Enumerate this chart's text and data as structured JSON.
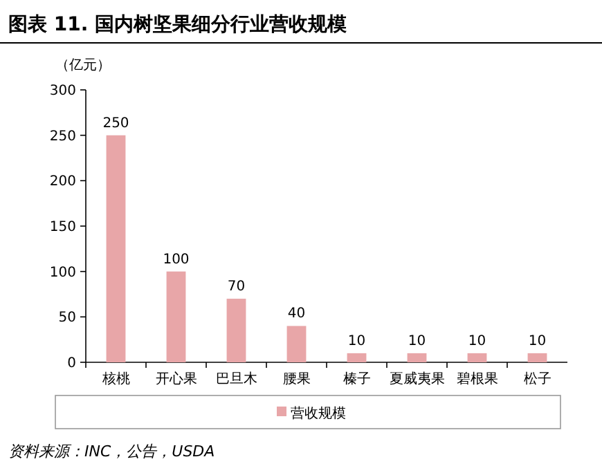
{
  "chart_data": {
    "type": "bar",
    "title": "图表 11. 国内树坚果细分行业营收规模",
    "ylabel": "（亿元）",
    "categories": [
      "核桃",
      "开心果",
      "巴旦木",
      "腰果",
      "榛子",
      "夏威夷果",
      "碧根果",
      "松子"
    ],
    "series": [
      {
        "name": "营收规模",
        "color": "#e8a6a8",
        "values": [
          250,
          100,
          70,
          40,
          10,
          10,
          10,
          10
        ]
      }
    ],
    "ylim": [
      0,
      300
    ],
    "yticks": [
      0,
      50,
      100,
      150,
      200,
      250,
      300
    ],
    "data_labels": true,
    "legend": "bottom",
    "annotations": [
      "资料来源：INC，公告，USDA"
    ]
  }
}
